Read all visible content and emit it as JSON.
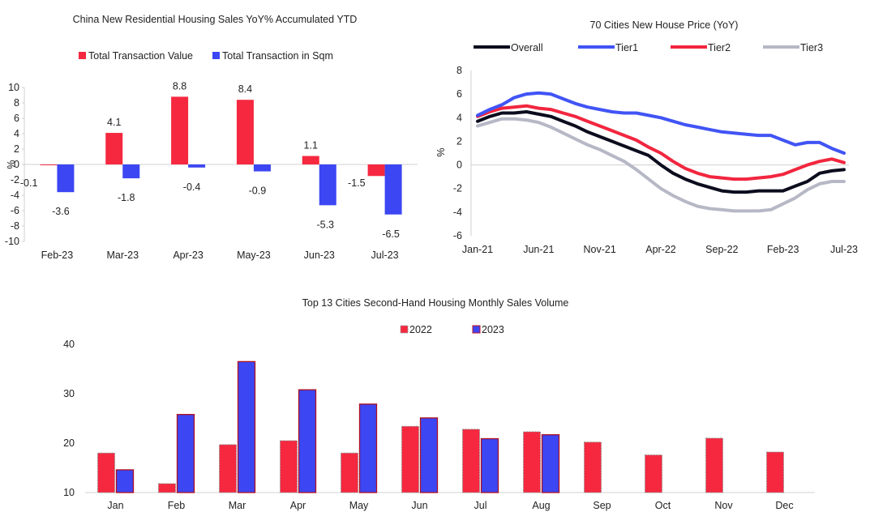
{
  "colors": {
    "red": "#f5283f",
    "blue": "#3c46f2",
    "black": "#0b0d1e",
    "tier1": "#4154f5",
    "tier2": "#f2263f",
    "tier3": "#b7b8c6",
    "axis": "#d0d0d0"
  },
  "chart_data": [
    {
      "type": "bar",
      "title": "China New Residential Housing Sales YoY% Accumulated  YTD",
      "ylabel": "%",
      "ylim": [
        -10,
        10
      ],
      "yticks": [
        10,
        8,
        6,
        4,
        2,
        0,
        -2,
        -4,
        -6,
        -8,
        -10
      ],
      "legend_position": "top",
      "categories": [
        "Feb-23",
        "Mar-23",
        "Apr-23",
        "May-23",
        "Jun-23",
        "Jul-23"
      ],
      "series": [
        {
          "name": "Total Transaction Value",
          "color_key": "red",
          "values": [
            -0.1,
            4.1,
            8.8,
            8.4,
            1.1,
            -1.5
          ],
          "labels": [
            "-0.1",
            "4.1",
            "8.8",
            "8.4",
            "1.1",
            "-1.5"
          ]
        },
        {
          "name": "Total Transaction in Sqm",
          "color_key": "blue",
          "values": [
            -3.6,
            -1.8,
            -0.4,
            -0.9,
            -5.3,
            -6.5
          ],
          "labels": [
            "-3.6",
            "-1.8",
            "-0.4",
            "-0.9",
            "-5.3",
            "-6.5"
          ]
        }
      ]
    },
    {
      "type": "line",
      "title": "70 Cities New House Price (YoY)",
      "ylabel": "%",
      "ylim": [
        -6,
        8
      ],
      "yticks": [
        8,
        6,
        4,
        2,
        0,
        -2,
        -4,
        -6
      ],
      "legend_position": "top",
      "x": [
        "Jan-21",
        "Feb-21",
        "Mar-21",
        "Apr-21",
        "May-21",
        "Jun-21",
        "Jul-21",
        "Aug-21",
        "Sep-21",
        "Oct-21",
        "Nov-21",
        "Dec-21",
        "Jan-22",
        "Feb-22",
        "Mar-22",
        "Apr-22",
        "May-22",
        "Jun-22",
        "Jul-22",
        "Aug-22",
        "Sep-22",
        "Oct-22",
        "Nov-22",
        "Dec-22",
        "Jan-23",
        "Feb-23",
        "Mar-23",
        "Apr-23",
        "May-23",
        "Jun-23",
        "Jul-23"
      ],
      "xticks": [
        "Jan-21",
        "Jun-21",
        "Nov-21",
        "Apr-22",
        "Sep-22",
        "Feb-23",
        "Jul-23"
      ],
      "series": [
        {
          "name": "Overall",
          "color_key": "black",
          "values": [
            3.7,
            4.1,
            4.4,
            4.4,
            4.5,
            4.3,
            4.1,
            3.7,
            3.3,
            2.8,
            2.4,
            2.0,
            1.6,
            1.2,
            0.8,
            0.0,
            -0.7,
            -1.2,
            -1.6,
            -1.9,
            -2.2,
            -2.3,
            -2.3,
            -2.2,
            -2.2,
            -2.2,
            -1.8,
            -1.4,
            -0.7,
            -0.5,
            -0.4
          ]
        },
        {
          "name": "Tier1",
          "color_key": "tier1",
          "values": [
            4.2,
            4.7,
            5.1,
            5.7,
            6.0,
            6.1,
            6.0,
            5.6,
            5.2,
            4.9,
            4.7,
            4.5,
            4.4,
            4.4,
            4.2,
            4.0,
            3.7,
            3.4,
            3.2,
            3.0,
            2.8,
            2.7,
            2.6,
            2.5,
            2.5,
            2.1,
            1.7,
            1.9,
            1.9,
            1.4,
            1.0
          ]
        },
        {
          "name": "Tier2",
          "color_key": "tier2",
          "values": [
            4.1,
            4.5,
            4.8,
            4.9,
            5.0,
            4.8,
            4.7,
            4.4,
            4.1,
            3.7,
            3.3,
            2.9,
            2.5,
            2.1,
            1.5,
            1.0,
            0.3,
            -0.3,
            -0.7,
            -1.0,
            -1.1,
            -1.2,
            -1.2,
            -1.1,
            -1.0,
            -0.8,
            -0.4,
            0.0,
            0.3,
            0.5,
            0.2
          ]
        },
        {
          "name": "Tier3",
          "color_key": "tier3",
          "values": [
            3.3,
            3.6,
            3.9,
            3.9,
            3.8,
            3.6,
            3.2,
            2.7,
            2.2,
            1.7,
            1.3,
            0.8,
            0.3,
            -0.4,
            -1.2,
            -2.0,
            -2.6,
            -3.1,
            -3.5,
            -3.7,
            -3.8,
            -3.9,
            -3.9,
            -3.9,
            -3.8,
            -3.3,
            -2.8,
            -2.1,
            -1.6,
            -1.4,
            -1.4
          ]
        }
      ]
    },
    {
      "type": "bar",
      "title": "Top 13 Cities Second-Hand Housing Monthly Sales Volume",
      "ylim": [
        10,
        40
      ],
      "yticks": [
        40,
        30,
        20,
        10
      ],
      "legend_position": "top",
      "categories": [
        "Jan",
        "Feb",
        "Mar",
        "Apr",
        "May",
        "Jun",
        "Jul",
        "Aug",
        "Sep",
        "Oct",
        "Nov",
        "Dec"
      ],
      "series": [
        {
          "name": "2022",
          "color_key": "red",
          "values": [
            18.0,
            11.8,
            19.7,
            20.5,
            18.0,
            23.4,
            22.8,
            22.3,
            20.2,
            17.6,
            21.0,
            18.2
          ]
        },
        {
          "name": "2023",
          "color_key": "blue",
          "values": [
            14.6,
            25.8,
            36.5,
            30.8,
            27.9,
            25.1,
            20.9,
            21.7,
            null,
            null,
            null,
            null
          ]
        }
      ]
    }
  ]
}
